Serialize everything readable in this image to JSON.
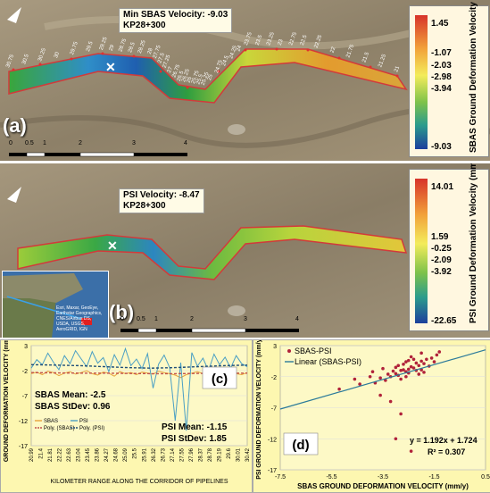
{
  "panel_a": {
    "label": "(a)",
    "callout_line1": "Min SBAS Velocity: -9.03",
    "callout_line2": "KP28+300",
    "legend_title": "SBAS Ground Deformation Velocity (mm/y)",
    "legend_values": [
      "1.45",
      "-1.07",
      "-2.03",
      "-2.98",
      "-3.94",
      "-9.03"
    ],
    "scale_ticks": [
      "0",
      "0.5",
      "1",
      "2",
      "3",
      "4"
    ],
    "km_markers": [
      "30.75",
      "30.5",
      "30.25",
      "30",
      "29.75",
      "29.5",
      "29.25",
      "29",
      "28.75",
      "28.5",
      "28.25",
      "28",
      "27.75",
      "27.5",
      "27.25",
      "27",
      "26.75",
      "26.5",
      "26.25",
      "26",
      "25.75",
      "25.5",
      "25.25",
      "25",
      "24.75",
      "24.5",
      "24.25",
      "24",
      "23.75",
      "23.5",
      "23.25",
      "23",
      "22.75",
      "22.5",
      "22.25",
      "22",
      "21.75",
      "21.5",
      "21.25",
      "21"
    ]
  },
  "panel_b": {
    "label": "(b)",
    "callout_line1": "PSI Velocity: -8.47",
    "callout_line2": "KP28+300",
    "legend_title": "PSI Ground Deformation Velocity (mm/y)",
    "legend_values": [
      "14.01",
      "1.59",
      "-0.25",
      "-2.09",
      "-3.92",
      "-22.65"
    ],
    "scale_ticks": [
      "0",
      "0.5",
      "1",
      "2",
      "3",
      "4"
    ],
    "inset_caption": "Esri, Maxar, GeoEye, Earthstar Geographics, CNES/Airbus DS, USDA, USGS, AeroGRID, IGN"
  },
  "chart_data": [
    {
      "type": "line",
      "panel_label": "(c)",
      "ylabel": "GROUND DEFORMATION VELOCITY (mm/y)",
      "xlabel": "KILOMETER RANGE ALONG THE CORRIDOR OF PIPELINES",
      "x_ticks": [
        "20.99",
        "21.4",
        "21.81",
        "22.22",
        "22.63",
        "23.04",
        "23.45",
        "23.86",
        "24.27",
        "24.68",
        "25.09",
        "25.5",
        "25.91",
        "26.32",
        "26.73",
        "27.14",
        "27.55",
        "27.96",
        "28.37",
        "28.78",
        "29.19",
        "29.6",
        "30.01",
        "30.42"
      ],
      "y_ticks": [
        "3",
        "-2",
        "-7",
        "-12",
        "-17"
      ],
      "ylim": [
        -17,
        3
      ],
      "legend": [
        "SBAS",
        "PSI",
        "Poly. (SBAS)",
        "Poly. (PSI)"
      ],
      "colors": {
        "SBAS": "#e8a33a",
        "PSI": "#4a9fc4",
        "Poly. (SBAS)": "#c0504d",
        "Poly. (PSI)": "#1f4e79"
      },
      "annotations": {
        "sbas_mean": "SBAS Mean: -2.5",
        "sbas_std": "SBAS StDev: 0.96",
        "psi_mean": "PSI Mean: -1.15",
        "psi_std": "PSI StDev: 1.85"
      },
      "series": [
        {
          "name": "SBAS",
          "values": [
            -2.6,
            -2.3,
            -2.8,
            -2.1,
            -2.4,
            -3.0,
            -2.5,
            -2.2,
            -2.7,
            -2.4,
            -2.0,
            -2.6,
            -2.9,
            -2.3,
            -2.5,
            -3.1,
            -2.2,
            -2.6,
            -2.4,
            -2.8,
            -2.3,
            -2.5,
            -2.7,
            -2.1,
            -2.4,
            -2.6,
            -2.9,
            -3.4,
            -2.8,
            -2.5,
            -2.2,
            -2.6,
            -2.4,
            -2.7,
            -2.3,
            -2.5,
            -2.1,
            -2.6,
            -2.8,
            -2.4
          ]
        },
        {
          "name": "PSI",
          "values": [
            -1.5,
            0.2,
            -0.8,
            1.5,
            -0.3,
            -1.8,
            1.0,
            -0.6,
            2.0,
            0.4,
            -1.2,
            1.8,
            -0.5,
            0.6,
            -2.2,
            1.2,
            -0.9,
            2.4,
            -1.0,
            0.3,
            -1.6,
            1.4,
            -5.5,
            -0.7,
            1.1,
            -1.4,
            -12.0,
            -0.4,
            -14.0,
            1.6,
            -1.1,
            0.5,
            -2.0,
            1.3,
            -0.8,
            0.7,
            -1.5,
            1.0,
            -0.6,
            -1.2
          ]
        },
        {
          "name": "Poly. (SBAS)",
          "values": [
            -2.4,
            -2.45,
            -2.5,
            -2.5,
            -2.55,
            -2.6,
            -2.6,
            -2.55,
            -2.5,
            -2.5
          ]
        },
        {
          "name": "Poly. (PSI)",
          "values": [
            -0.8,
            -0.9,
            -1.0,
            -1.2,
            -1.4,
            -1.5,
            -1.4,
            -1.2,
            -1.0,
            -0.9
          ]
        }
      ]
    },
    {
      "type": "scatter",
      "panel_label": "(d)",
      "xlabel": "SBAS GROUND DEFORMATION VELOCITY (mm/y)",
      "ylabel": "PSI GROUND DEFORMATION VELOCITY (mm/y)",
      "x_ticks": [
        "-7.5",
        "-5.5",
        "-3.5",
        "-1.5",
        "0.5"
      ],
      "y_ticks": [
        "3",
        "-2",
        "-7",
        "-12",
        "-17"
      ],
      "xlim": [
        -7.5,
        0.5
      ],
      "ylim": [
        -17,
        3
      ],
      "legend": [
        "SBAS-PSI",
        "Linear (SBAS-PSI)"
      ],
      "colors": {
        "points": "#b0223a",
        "fit": "#2b7a9a"
      },
      "equation": "y = 1.192x + 1.724",
      "r_squared": "R² = 0.307",
      "fit": {
        "slope": 1.192,
        "intercept": 1.724
      },
      "series": [
        {
          "name": "SBAS-PSI",
          "points": [
            [
              -3.0,
              -1.5
            ],
            [
              -2.8,
              -1.0
            ],
            [
              -2.5,
              -0.8
            ],
            [
              -2.6,
              -1.2
            ],
            [
              -2.2,
              0.2
            ],
            [
              -2.4,
              -0.4
            ],
            [
              -2.9,
              -1.8
            ],
            [
              -3.2,
              -2.0
            ],
            [
              -2.0,
              0.5
            ],
            [
              -1.8,
              0.8
            ],
            [
              -2.1,
              -0.2
            ],
            [
              -2.7,
              -0.9
            ],
            [
              -3.4,
              -2.6
            ],
            [
              -3.6,
              -2.2
            ],
            [
              -2.3,
              -0.6
            ],
            [
              -1.9,
              0.1
            ],
            [
              -2.5,
              -1.4
            ],
            [
              -3.0,
              -0.5
            ],
            [
              -2.6,
              0.4
            ],
            [
              -2.2,
              -1.0
            ],
            [
              -1.6,
              1.0
            ],
            [
              -1.5,
              0.4
            ],
            [
              -2.0,
              -0.9
            ],
            [
              -2.8,
              -2.4
            ],
            [
              -3.1,
              -1.1
            ],
            [
              -3.8,
              -3.0
            ],
            [
              -4.0,
              -2.0
            ],
            [
              -2.4,
              1.2
            ],
            [
              -1.7,
              -0.3
            ],
            [
              -2.9,
              -0.2
            ],
            [
              -3.3,
              -1.6
            ],
            [
              -2.1,
              -1.6
            ],
            [
              -2.7,
              0.0
            ],
            [
              -1.4,
              1.5
            ],
            [
              -2.6,
              -2.0
            ],
            [
              -4.4,
              -3.2
            ],
            [
              -3.5,
              -0.7
            ],
            [
              -2.3,
              0.8
            ],
            [
              -1.9,
              -1.3
            ],
            [
              -2.5,
              0.6
            ],
            [
              -5.2,
              -4.0
            ],
            [
              -3.2,
              -6.0
            ],
            [
              -2.8,
              -8.0
            ],
            [
              -3.0,
              -12.0
            ],
            [
              -2.4,
              -14.0
            ],
            [
              -3.6,
              -5.0
            ],
            [
              -4.6,
              -2.4
            ],
            [
              -1.3,
              2.0
            ],
            [
              -2.0,
              1.8
            ],
            [
              -3.9,
              -1.2
            ]
          ]
        },
        {
          "name": "Linear (SBAS-PSI)"
        }
      ]
    }
  ]
}
